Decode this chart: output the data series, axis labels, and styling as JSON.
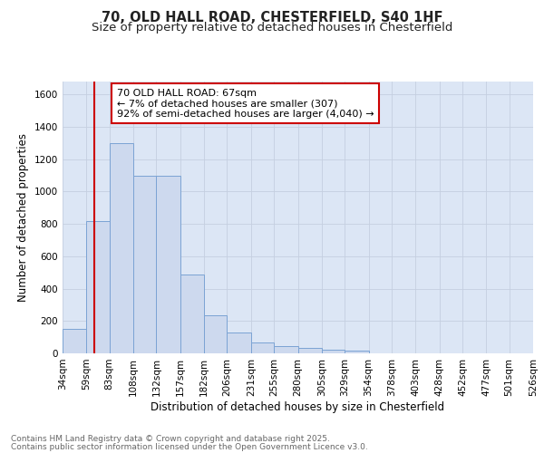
{
  "title_line1": "70, OLD HALL ROAD, CHESTERFIELD, S40 1HF",
  "title_line2": "Size of property relative to detached houses in Chesterfield",
  "xlabel": "Distribution of detached houses by size in Chesterfield",
  "ylabel": "Number of detached properties",
  "bin_labels": [
    "34sqm",
    "59sqm",
    "83sqm",
    "108sqm",
    "132sqm",
    "157sqm",
    "182sqm",
    "206sqm",
    "231sqm",
    "255sqm",
    "280sqm",
    "305sqm",
    "329sqm",
    "354sqm",
    "378sqm",
    "403sqm",
    "428sqm",
    "452sqm",
    "477sqm",
    "501sqm",
    "526sqm"
  ],
  "bin_edges": [
    34,
    59,
    83,
    108,
    132,
    157,
    182,
    206,
    231,
    255,
    280,
    305,
    329,
    354,
    378,
    403,
    428,
    452,
    477,
    501,
    526
  ],
  "bar_heights": [
    150,
    820,
    1300,
    1100,
    1100,
    490,
    235,
    130,
    70,
    45,
    35,
    20,
    15,
    0,
    0,
    0,
    0,
    0,
    0,
    0
  ],
  "bar_color": "#cdd9ee",
  "bar_edge_color": "#7ba3d4",
  "grid_color": "#c5cfe0",
  "background_color": "#dce6f5",
  "fig_background": "#ffffff",
  "red_line_x": 67,
  "red_line_color": "#cc0000",
  "annotation_text": "70 OLD HALL ROAD: 67sqm\n← 7% of detached houses are smaller (307)\n92% of semi-detached houses are larger (4,040) →",
  "annotation_box_facecolor": "#ffffff",
  "annotation_box_edgecolor": "#cc0000",
  "ylim": [
    0,
    1680
  ],
  "yticks": [
    0,
    200,
    400,
    600,
    800,
    1000,
    1200,
    1400,
    1600
  ],
  "footer_line1": "Contains HM Land Registry data © Crown copyright and database right 2025.",
  "footer_line2": "Contains public sector information licensed under the Open Government Licence v3.0.",
  "title_fontsize": 10.5,
  "subtitle_fontsize": 9.5,
  "axis_label_fontsize": 8.5,
  "tick_fontsize": 7.5,
  "annotation_fontsize": 8,
  "footer_fontsize": 6.5
}
